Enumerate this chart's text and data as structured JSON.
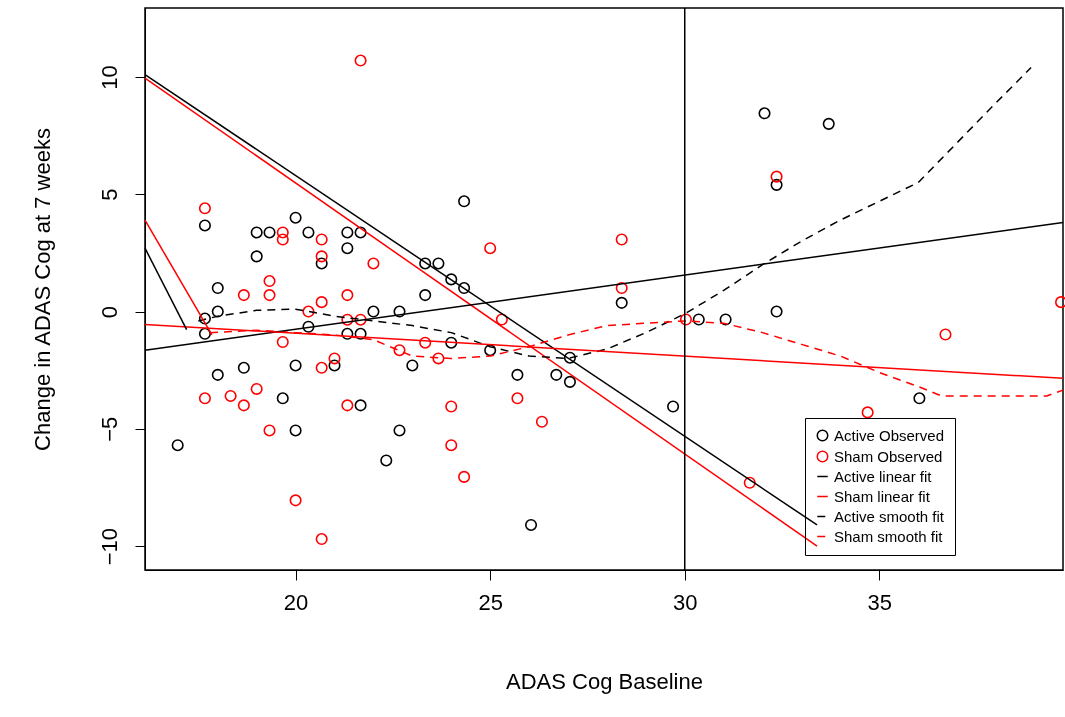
{
  "chart_data": {
    "type": "scatter",
    "xlabel": "ADAS Cog Baseline",
    "ylabel": "Change in ADAS Cog at 7 weeks",
    "xlim": [
      16.13,
      39.72
    ],
    "ylim": [
      -11.02,
      12.94
    ],
    "xticks": [
      20,
      25,
      30,
      35
    ],
    "yticks": [
      -10,
      -5,
      0,
      5,
      10
    ],
    "grid": false,
    "legend": "bottom right",
    "ref_lines": [
      {
        "axis": "x",
        "value": 30,
        "color": "#000000"
      }
    ],
    "series": [
      {
        "name": "Active Observed",
        "marker": "circle",
        "color": "#000000",
        "x": [
          16.97,
          17.67,
          17.67,
          17.67,
          18.0,
          18.0,
          18.0,
          18.67,
          19.0,
          19.0,
          19.33,
          19.67,
          20.0,
          20.0,
          20.0,
          20.33,
          20.33,
          20.67,
          21.0,
          21.33,
          21.33,
          21.33,
          21.67,
          21.67,
          21.67,
          22.0,
          22.33,
          22.67,
          22.67,
          23.0,
          23.33,
          23.33,
          23.67,
          24.0,
          24.0,
          24.33,
          24.33,
          25.0,
          25.7,
          26.05,
          26.7,
          27.05,
          27.05,
          28.38,
          29.7,
          30.36,
          31.05,
          32.05,
          32.36,
          32.36,
          33.7,
          36.03
        ],
        "values": [
          -5.7,
          3.67,
          -0.3,
          -0.95,
          1.0,
          0,
          -2.7,
          -2.4,
          3.37,
          2.35,
          3.37,
          -3.7,
          4.0,
          -2.3,
          -5.07,
          3.37,
          -0.65,
          2.05,
          -2.3,
          3.37,
          2.7,
          -0.95,
          3.37,
          -0.95,
          -4.0,
          0,
          -6.35,
          0,
          -5.07,
          -2.3,
          2.05,
          0.7,
          2.05,
          1.37,
          -1.33,
          4.7,
          1.0,
          -1.65,
          -2.7,
          -9.1,
          -2.7,
          -1.97,
          -3.0,
          0.37,
          -4.05,
          -0.34,
          -0.34,
          8.45,
          5.4,
          0,
          8.0,
          -3.7
        ]
      },
      {
        "name": "Sham Observed",
        "marker": "circle",
        "color": "#ff0000",
        "x": [
          17.67,
          17.67,
          18.33,
          18.67,
          18.67,
          19.0,
          19.33,
          19.33,
          19.33,
          19.67,
          19.67,
          19.67,
          20.0,
          20.33,
          20.67,
          20.67,
          20.67,
          20.67,
          20.67,
          21.0,
          21.33,
          21.33,
          21.33,
          21.67,
          21.67,
          22.0,
          22.67,
          23.33,
          23.67,
          24.0,
          24.0,
          24.33,
          25.0,
          25.3,
          25.7,
          26.33,
          28.38,
          28.38,
          30.03,
          31.67,
          32.36,
          34.7,
          36.7,
          39.67
        ],
        "values": [
          4.4,
          -3.7,
          -3.6,
          0.7,
          -4.0,
          -3.3,
          1.3,
          0.7,
          -5.07,
          3.37,
          3.07,
          -1.3,
          -8.05,
          0,
          3.07,
          2.35,
          0.4,
          -2.4,
          -9.7,
          -2.0,
          0.7,
          -0.35,
          -4.0,
          10.7,
          -0.35,
          2.05,
          -1.65,
          -1.33,
          -2.0,
          -4.05,
          -5.7,
          -7.05,
          2.7,
          -0.34,
          -3.7,
          -4.7,
          3.07,
          1.0,
          -0.34,
          -7.3,
          5.75,
          -4.3,
          -0.98,
          0.4
        ]
      },
      {
        "name": "Active linear fit",
        "type": "line",
        "marker": "none",
        "color": "#000000",
        "line_style": "solid",
        "x": [
          16.13,
          33.4
        ],
        "values": [
          10.1,
          -9.1
        ]
      },
      {
        "name": "Sham linear fit",
        "type": "line",
        "marker": "none",
        "color": "#ff0000",
        "line_style": "solid",
        "x": [
          16.13,
          33.4
        ],
        "values": [
          9.95,
          -10.0
        ]
      },
      {
        "name": "Active smooth fit",
        "type": "line",
        "marker": "none",
        "color": "#000000",
        "line_style": "dashed",
        "x": [
          17.5,
          18,
          19,
          20,
          21,
          22,
          23,
          24,
          25,
          26,
          27,
          28,
          29,
          30,
          31,
          32,
          33,
          34,
          35,
          36,
          37,
          38,
          38.9
        ],
        "values": [
          -0.4,
          -0.2,
          0.05,
          0.1,
          -0.2,
          -0.4,
          -0.6,
          -0.9,
          -1.5,
          -1.9,
          -2.0,
          -1.6,
          -0.9,
          -0.1,
          0.9,
          2.0,
          3.0,
          3.9,
          4.7,
          5.5,
          7.2,
          8.9,
          10.4
        ]
      },
      {
        "name": "Sham smooth fit",
        "type": "line",
        "marker": "none",
        "color": "#ff0000",
        "line_style": "dashed",
        "x": [
          17.8,
          19,
          20,
          21,
          22,
          23,
          24,
          25,
          26,
          27,
          28,
          29,
          30,
          31,
          32,
          33,
          34,
          35,
          36,
          36.6,
          37,
          38,
          39.3,
          39.72
        ],
        "values": [
          -0.9,
          -0.8,
          -0.9,
          -1.0,
          -1.2,
          -1.9,
          -2.0,
          -1.9,
          -1.5,
          -1.0,
          -0.6,
          -0.5,
          -0.4,
          -0.5,
          -0.9,
          -1.4,
          -1.9,
          -2.6,
          -3.2,
          -3.6,
          -3.6,
          -3.6,
          -3.6,
          -3.35
        ]
      },
      {
        "type": "line",
        "color": "#000000",
        "line_style": "solid",
        "x": [
          16.13,
          39.72
        ],
        "values": [
          -1.65,
          3.8
        ]
      },
      {
        "type": "line",
        "color": "#ff0000",
        "line_style": "solid",
        "x": [
          16.13,
          39.72
        ],
        "values": [
          -0.55,
          -2.85
        ]
      },
      {
        "type": "line",
        "color": "#000000",
        "line_style": "solid",
        "x": [
          16.13,
          17.2
        ],
        "values": [
          2.7,
          -0.77
        ]
      },
      {
        "type": "line",
        "color": "#ff0000",
        "line_style": "solid",
        "x": [
          16.13,
          17.85
        ],
        "values": [
          3.9,
          -1.0
        ]
      }
    ]
  }
}
